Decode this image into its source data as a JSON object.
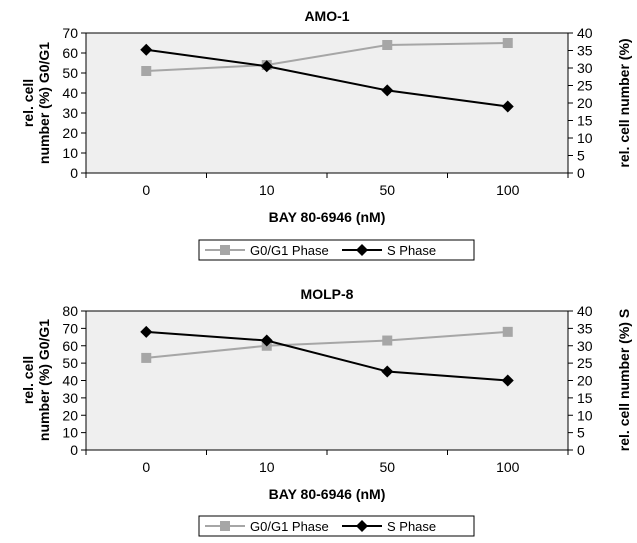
{
  "chart_data": [
    {
      "type": "line",
      "title": "AMO-1",
      "categories": [
        "0",
        "10",
        "50",
        "100"
      ],
      "xlabel": "BAY 80-6946 (nM)",
      "ylabel_left": [
        "rel. cell",
        "number (%) G0/G1"
      ],
      "ylabel_right": "rel. cell number (%)",
      "ylim_left": [
        0,
        70
      ],
      "yticks_left": [
        "0",
        "10",
        "20",
        "30",
        "40",
        "50",
        "60",
        "70"
      ],
      "ylim_right": [
        0,
        40
      ],
      "yticks_right": [
        "0",
        "5",
        "10",
        "15",
        "20",
        "25",
        "30",
        "35",
        "40"
      ],
      "grid": false,
      "legend_position": "bottom",
      "series": [
        {
          "name": "G0/G1 Phase",
          "axis": "left",
          "values": [
            51,
            54,
            64,
            65
          ],
          "color": "#a6a6a6",
          "marker": "square"
        },
        {
          "name": "S Phase",
          "axis": "right",
          "values": [
            35.2,
            30.5,
            23.6,
            19
          ],
          "color": "#000000",
          "marker": "diamond"
        }
      ]
    },
    {
      "type": "line",
      "title": "MOLP-8",
      "categories": [
        "0",
        "10",
        "50",
        "100"
      ],
      "xlabel": "BAY 80-6946 (nM)",
      "ylabel_left": [
        "rel. cell",
        "number (%) G0/G1"
      ],
      "ylabel_right": "rel. cell number (%) S",
      "ylim_left": [
        0,
        80
      ],
      "yticks_left": [
        "0",
        "10",
        "20",
        "30",
        "40",
        "50",
        "60",
        "70",
        "80"
      ],
      "ylim_right": [
        0,
        40
      ],
      "yticks_right": [
        "0",
        "5",
        "10",
        "15",
        "20",
        "25",
        "30",
        "35",
        "40"
      ],
      "grid": false,
      "legend_position": "bottom",
      "series": [
        {
          "name": "G0/G1 Phase",
          "axis": "left",
          "values": [
            53,
            60,
            63,
            68
          ],
          "color": "#a6a6a6",
          "marker": "square"
        },
        {
          "name": "S Phase",
          "axis": "right",
          "values": [
            34,
            31.5,
            22.6,
            20
          ],
          "color": "#000000",
          "marker": "diamond"
        }
      ]
    }
  ],
  "colors": {
    "plot_background": "#efefef",
    "axis": "#000000"
  }
}
